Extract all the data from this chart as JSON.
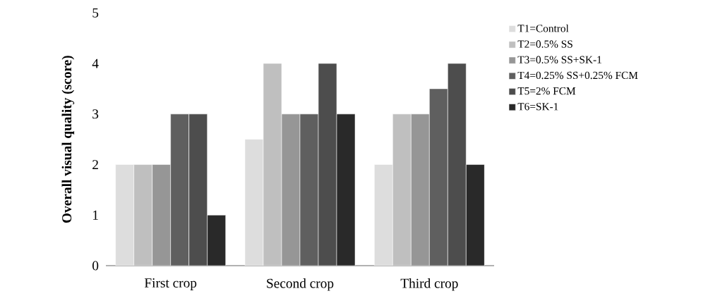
{
  "chart_data": {
    "type": "bar",
    "ylabel": "Overall visual quality (score)",
    "categories": [
      "First crop",
      "Second crop",
      "Third crop"
    ],
    "series": [
      {
        "name": "T1=Control",
        "color": "#dddddd",
        "values": [
          2,
          2.5,
          2
        ]
      },
      {
        "name": "T2=0.5% SS",
        "color": "#bfbfbf",
        "values": [
          2,
          4,
          3
        ]
      },
      {
        "name": "T3=0.5% SS+SK-1",
        "color": "#969696",
        "values": [
          2,
          3,
          3
        ]
      },
      {
        "name": "T4=0.25% SS+0.25% FCM",
        "color": "#5f5f5f",
        "values": [
          3,
          3,
          3.5
        ]
      },
      {
        "name": "T5=2% FCM",
        "color": "#4d4d4d",
        "values": [
          3,
          4,
          4
        ]
      },
      {
        "name": "T6=SK-1",
        "color": "#292929",
        "values": [
          1,
          3,
          2
        ]
      }
    ],
    "ylim": [
      0,
      5
    ],
    "yticks": [
      0,
      1,
      2,
      3,
      4,
      5
    ],
    "grid": false,
    "legend": "right"
  }
}
